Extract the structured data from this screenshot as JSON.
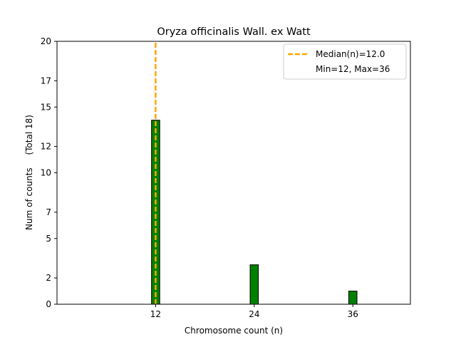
{
  "chart_data": {
    "type": "bar",
    "title": "Oryza officinalis Wall. ex Watt",
    "xlabel": "Chromosome count (n)",
    "ylabel": "Num of counts",
    "ylabel_note": "(Total 18)",
    "x": [
      12,
      24,
      36
    ],
    "values": [
      14,
      3,
      1
    ],
    "xticks": [
      12,
      24,
      36
    ],
    "yticks": [
      0,
      2,
      5,
      7,
      10,
      12,
      15,
      17,
      20
    ],
    "xlim": [
      0,
      43
    ],
    "ylim": [
      0,
      20
    ],
    "bar_width": 1,
    "bar_color": "#008000",
    "bar_edge_color": "#000000",
    "median": 12.0,
    "median_color": "#FFA500",
    "legend": {
      "position": "top-right",
      "entries": [
        "Median(n)=12.0",
        "Min=12, Max=36"
      ]
    },
    "grid": false
  }
}
